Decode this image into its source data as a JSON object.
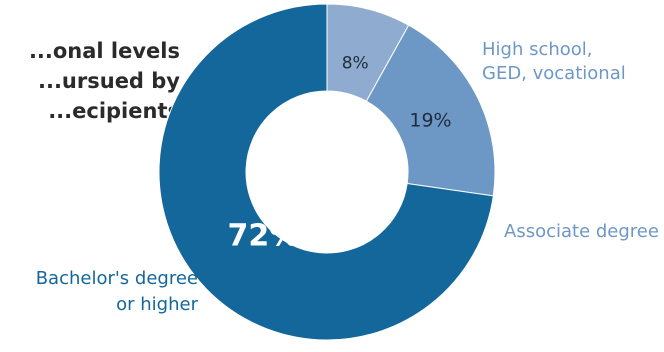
{
  "chart_data": {
    "type": "pie",
    "title": "...onal levels\n...ursued by\n...ecipients",
    "categories": [
      "High school, GED, vocational",
      "Associate degree",
      "Bachelor's degree or higher"
    ],
    "label_lines": [
      [
        "High school,",
        "GED, vocational"
      ],
      [
        "Associate degree"
      ],
      [
        "Bachelor's degree",
        "or higher"
      ]
    ],
    "values": [
      8,
      19,
      72
    ],
    "value_labels": [
      "8%",
      "19%",
      "72%"
    ],
    "colors": [
      "#8fabd0",
      "#6d98c6",
      "#14679a"
    ],
    "label_colors": [
      "#6d98c6",
      "#6d98c6",
      "#14679a"
    ],
    "donut": true
  }
}
